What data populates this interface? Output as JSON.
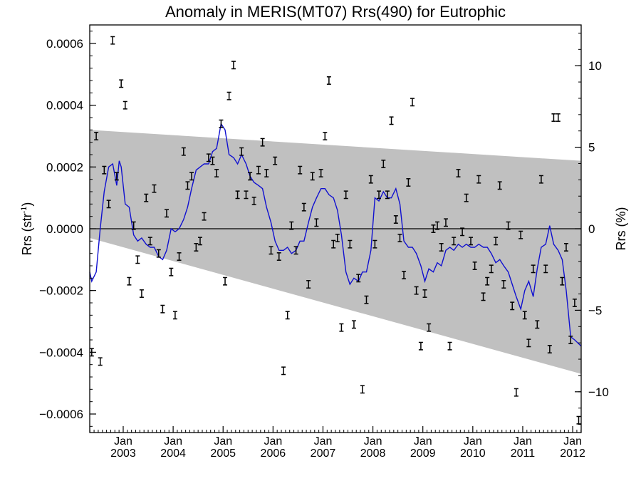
{
  "chart_data": {
    "type": "line",
    "title": "Anomaly in MERIS(MT07) Rrs(490) for Eutrophic",
    "ylabel_left_main": "Rrs (str",
    "ylabel_left_sup": "-1",
    "ylabel_left_end": ")",
    "ylabel_right": "Rrs (%)",
    "xlabel": "",
    "xlim": [
      2002.33,
      2012.17
    ],
    "ylim_left": [
      -0.00066,
      0.00066
    ],
    "ylim_right": [
      -12.5,
      12.5
    ],
    "grid": false,
    "left_ticks": [
      {
        "value": 0.0006,
        "label": "0.0006"
      },
      {
        "value": 0.0004,
        "label": "0.0004"
      },
      {
        "value": 0.0002,
        "label": "0.0002"
      },
      {
        "value": 0.0,
        "label": "0.0000"
      },
      {
        "value": -0.0002,
        "label": "−0.0002"
      },
      {
        "value": -0.0004,
        "label": "−0.0004"
      },
      {
        "value": -0.0006,
        "label": "−0.0006"
      }
    ],
    "right_ticks": [
      {
        "value": 10,
        "label": "10"
      },
      {
        "value": 5,
        "label": "5"
      },
      {
        "value": 0,
        "label": "0"
      },
      {
        "value": -5,
        "label": "−5"
      },
      {
        "value": -10,
        "label": "−10"
      }
    ],
    "x_ticks": [
      {
        "value": 2003.0,
        "label": "Jan",
        "year": "2003"
      },
      {
        "value": 2004.0,
        "label": "Jan",
        "year": "2004"
      },
      {
        "value": 2005.0,
        "label": "Jan",
        "year": "2005"
      },
      {
        "value": 2006.0,
        "label": "Jan",
        "year": "2006"
      },
      {
        "value": 2007.0,
        "label": "Jan",
        "year": "2007"
      },
      {
        "value": 2008.0,
        "label": "Jan",
        "year": "2008"
      },
      {
        "value": 2009.0,
        "label": "Jan",
        "year": "2009"
      },
      {
        "value": 2010.0,
        "label": "Jan",
        "year": "2010"
      },
      {
        "value": 2011.0,
        "label": "Jan",
        "year": "2011"
      },
      {
        "value": 2012.0,
        "label": "Jan",
        "year": "2012"
      }
    ],
    "band": {
      "color": "#c0c0c0",
      "upper": [
        [
          2002.33,
          0.00032
        ],
        [
          2012.17,
          0.00022
        ]
      ],
      "lower": [
        [
          2002.33,
          -3e-05
        ],
        [
          2012.17,
          -0.00047
        ]
      ]
    },
    "zero_line": 0.0,
    "series": [
      {
        "style": "errorbar",
        "color": "#000000",
        "errorbar_halfwidth": 1.2e-05,
        "points": [
          [
            2002.37,
            -0.0004
          ],
          [
            2002.46,
            0.0003
          ],
          [
            2002.54,
            -0.00043
          ],
          [
            2002.62,
            0.00019
          ],
          [
            2002.71,
            8e-05
          ],
          [
            2002.79,
            0.00061
          ],
          [
            2002.87,
            0.00017
          ],
          [
            2002.96,
            0.00047
          ],
          [
            2003.04,
            0.0004
          ],
          [
            2003.12,
            -0.00017
          ],
          [
            2003.21,
            1e-05
          ],
          [
            2003.29,
            -0.0001
          ],
          [
            2003.37,
            -0.00021
          ],
          [
            2003.46,
            0.0001
          ],
          [
            2003.54,
            -4e-05
          ],
          [
            2003.62,
            0.00013
          ],
          [
            2003.71,
            -8e-05
          ],
          [
            2003.79,
            -0.00026
          ],
          [
            2003.87,
            5e-05
          ],
          [
            2003.96,
            -0.00014
          ],
          [
            2004.04,
            -0.00028
          ],
          [
            2004.12,
            -9e-05
          ],
          [
            2004.21,
            0.00025
          ],
          [
            2004.29,
            0.00014
          ],
          [
            2004.37,
            0.00017
          ],
          [
            2004.46,
            -6e-05
          ],
          [
            2004.54,
            -4e-05
          ],
          [
            2004.62,
            4e-05
          ],
          [
            2004.71,
            0.00023
          ],
          [
            2004.79,
            0.00022
          ],
          [
            2004.87,
            0.00018
          ],
          [
            2004.96,
            0.00034
          ],
          [
            2005.04,
            -0.00017
          ],
          [
            2005.12,
            0.00043
          ],
          [
            2005.21,
            0.00053
          ],
          [
            2005.29,
            0.00011
          ],
          [
            2005.37,
            0.00025
          ],
          [
            2005.46,
            0.00011
          ],
          [
            2005.54,
            0.00017
          ],
          [
            2005.62,
            9e-05
          ],
          [
            2005.71,
            0.00019
          ],
          [
            2005.79,
            0.00028
          ],
          [
            2005.87,
            0.00018
          ],
          [
            2005.96,
            -7e-05
          ],
          [
            2006.04,
            0.00022
          ],
          [
            2006.12,
            -9e-05
          ],
          [
            2006.21,
            -0.00046
          ],
          [
            2006.29,
            -0.00028
          ],
          [
            2006.37,
            1e-05
          ],
          [
            2006.46,
            -7e-05
          ],
          [
            2006.54,
            0.00019
          ],
          [
            2006.62,
            7e-05
          ],
          [
            2006.71,
            -0.00018
          ],
          [
            2006.79,
            0.00017
          ],
          [
            2006.87,
            2e-05
          ],
          [
            2006.96,
            0.00018
          ],
          [
            2007.04,
            0.0003
          ],
          [
            2007.12,
            0.00048
          ],
          [
            2007.21,
            -5e-05
          ],
          [
            2007.29,
            -3e-05
          ],
          [
            2007.37,
            -0.00032
          ],
          [
            2007.46,
            0.00011
          ],
          [
            2007.54,
            -5e-05
          ],
          [
            2007.62,
            -0.00031
          ],
          [
            2007.71,
            -0.00016
          ],
          [
            2007.79,
            -0.00052
          ],
          [
            2007.87,
            -0.00023
          ],
          [
            2007.96,
            0.00016
          ],
          [
            2008.04,
            -5e-05
          ],
          [
            2008.12,
            0.00011
          ],
          [
            2008.21,
            0.00021
          ],
          [
            2008.29,
            0.00011
          ],
          [
            2008.37,
            0.00035
          ],
          [
            2008.46,
            3e-05
          ],
          [
            2008.54,
            -3e-05
          ],
          [
            2008.62,
            -0.00015
          ],
          [
            2008.71,
            0.00015
          ],
          [
            2008.79,
            0.00041
          ],
          [
            2008.87,
            -0.0002
          ],
          [
            2008.96,
            -0.00038
          ],
          [
            2009.04,
            -0.00021
          ],
          [
            2009.12,
            -0.00032
          ],
          [
            2009.21,
            0.0
          ],
          [
            2009.29,
            1e-05
          ],
          [
            2009.37,
            -6e-05
          ],
          [
            2009.46,
            2e-05
          ],
          [
            2009.54,
            -0.00038
          ],
          [
            2009.62,
            -4e-05
          ],
          [
            2009.71,
            0.00018
          ],
          [
            2009.79,
            -1e-05
          ],
          [
            2009.87,
            0.0001
          ],
          [
            2009.96,
            -4e-05
          ],
          [
            2010.04,
            -0.00012
          ],
          [
            2010.12,
            0.00016
          ],
          [
            2010.21,
            -0.00022
          ],
          [
            2010.29,
            -0.00017
          ],
          [
            2010.37,
            -0.00013
          ],
          [
            2010.46,
            -4e-05
          ],
          [
            2010.54,
            0.00014
          ],
          [
            2010.62,
            -0.00018
          ],
          [
            2010.71,
            1e-05
          ],
          [
            2010.79,
            -0.00025
          ],
          [
            2010.87,
            -0.00053
          ],
          [
            2010.96,
            -2e-05
          ],
          [
            2011.04,
            -0.00028
          ],
          [
            2011.12,
            -0.00037
          ],
          [
            2011.21,
            -0.00013
          ],
          [
            2011.29,
            -0.00031
          ],
          [
            2011.37,
            0.00016
          ],
          [
            2011.46,
            -0.00013
          ],
          [
            2011.54,
            -0.00039
          ],
          [
            2011.62,
            0.00036
          ],
          [
            2011.71,
            0.00036
          ],
          [
            2011.79,
            -0.00017
          ],
          [
            2011.87,
            -6e-05
          ],
          [
            2011.96,
            -0.00036
          ],
          [
            2012.04,
            -0.00024
          ],
          [
            2012.12,
            -0.00062
          ]
        ]
      },
      {
        "style": "line",
        "color": "#1010d0",
        "points": [
          [
            2002.33,
            -0.00014
          ],
          [
            2002.37,
            -0.00017
          ],
          [
            2002.46,
            -0.00014
          ],
          [
            2002.54,
            0.0
          ],
          [
            2002.62,
            0.00012
          ],
          [
            2002.71,
            0.0002
          ],
          [
            2002.79,
            0.00021
          ],
          [
            2002.87,
            0.00014
          ],
          [
            2002.92,
            0.00022
          ],
          [
            2002.96,
            0.0002
          ],
          [
            2003.04,
            8e-05
          ],
          [
            2003.12,
            7e-05
          ],
          [
            2003.21,
            -2e-05
          ],
          [
            2003.29,
            -4e-05
          ],
          [
            2003.37,
            -3e-05
          ],
          [
            2003.46,
            -5e-05
          ],
          [
            2003.54,
            -6e-05
          ],
          [
            2003.62,
            -6e-05
          ],
          [
            2003.71,
            -9e-05
          ],
          [
            2003.79,
            -0.0001
          ],
          [
            2003.87,
            -7e-05
          ],
          [
            2003.96,
            0.0
          ],
          [
            2004.04,
            -1e-05
          ],
          [
            2004.12,
            0.0
          ],
          [
            2004.21,
            3e-05
          ],
          [
            2004.29,
            7e-05
          ],
          [
            2004.37,
            0.00013
          ],
          [
            2004.46,
            0.00019
          ],
          [
            2004.54,
            0.0002
          ],
          [
            2004.62,
            0.00021
          ],
          [
            2004.71,
            0.00021
          ],
          [
            2004.79,
            0.00025
          ],
          [
            2004.87,
            0.00026
          ],
          [
            2004.96,
            0.00034
          ],
          [
            2005.04,
            0.00032
          ],
          [
            2005.12,
            0.00024
          ],
          [
            2005.21,
            0.00023
          ],
          [
            2005.29,
            0.00021
          ],
          [
            2005.37,
            0.00024
          ],
          [
            2005.46,
            0.00021
          ],
          [
            2005.54,
            0.00017
          ],
          [
            2005.62,
            0.00015
          ],
          [
            2005.71,
            0.00014
          ],
          [
            2005.79,
            0.00013
          ],
          [
            2005.87,
            7e-05
          ],
          [
            2005.96,
            2e-05
          ],
          [
            2006.04,
            -4e-05
          ],
          [
            2006.12,
            -7e-05
          ],
          [
            2006.21,
            -7e-05
          ],
          [
            2006.29,
            -6e-05
          ],
          [
            2006.37,
            -8e-05
          ],
          [
            2006.46,
            -7e-05
          ],
          [
            2006.54,
            -4e-05
          ],
          [
            2006.62,
            -4e-05
          ],
          [
            2006.71,
            2e-05
          ],
          [
            2006.79,
            7e-05
          ],
          [
            2006.87,
            0.0001
          ],
          [
            2006.96,
            0.00013
          ],
          [
            2007.04,
            0.00013
          ],
          [
            2007.12,
            0.00011
          ],
          [
            2007.21,
            0.0001
          ],
          [
            2007.29,
            6e-05
          ],
          [
            2007.37,
            -2e-05
          ],
          [
            2007.46,
            -0.00014
          ],
          [
            2007.54,
            -0.00018
          ],
          [
            2007.62,
            -0.00016
          ],
          [
            2007.71,
            -0.00017
          ],
          [
            2007.79,
            -0.00014
          ],
          [
            2007.87,
            -0.00014
          ],
          [
            2007.96,
            -7e-05
          ],
          [
            2008.04,
            0.0001
          ],
          [
            2008.12,
            9e-05
          ],
          [
            2008.21,
            0.00012
          ],
          [
            2008.29,
            0.0001
          ],
          [
            2008.37,
            0.0001
          ],
          [
            2008.46,
            0.00013
          ],
          [
            2008.54,
            8e-05
          ],
          [
            2008.62,
            -4e-05
          ],
          [
            2008.71,
            -6e-05
          ],
          [
            2008.79,
            -6e-05
          ],
          [
            2008.87,
            -8e-05
          ],
          [
            2008.96,
            -0.00012
          ],
          [
            2009.04,
            -0.00017
          ],
          [
            2009.12,
            -0.00013
          ],
          [
            2009.21,
            -0.00014
          ],
          [
            2009.29,
            -0.00011
          ],
          [
            2009.37,
            -0.00012
          ],
          [
            2009.46,
            -7e-05
          ],
          [
            2009.54,
            -6e-05
          ],
          [
            2009.62,
            -7e-05
          ],
          [
            2009.71,
            -5e-05
          ],
          [
            2009.79,
            -6e-05
          ],
          [
            2009.87,
            -5e-05
          ],
          [
            2009.96,
            -6e-05
          ],
          [
            2010.04,
            -6e-05
          ],
          [
            2010.12,
            -5e-05
          ],
          [
            2010.21,
            -6e-05
          ],
          [
            2010.29,
            -6e-05
          ],
          [
            2010.37,
            -8e-05
          ],
          [
            2010.46,
            -0.00011
          ],
          [
            2010.54,
            -0.0001
          ],
          [
            2010.62,
            -0.00012
          ],
          [
            2010.71,
            -0.00014
          ],
          [
            2010.79,
            -0.00018
          ],
          [
            2010.87,
            -0.00022
          ],
          [
            2010.96,
            -0.00026
          ],
          [
            2011.04,
            -0.0002
          ],
          [
            2011.12,
            -0.00017
          ],
          [
            2011.21,
            -0.00022
          ],
          [
            2011.29,
            -0.00013
          ],
          [
            2011.37,
            -6e-05
          ],
          [
            2011.46,
            -5e-05
          ],
          [
            2011.54,
            1e-05
          ],
          [
            2011.62,
            -5e-05
          ],
          [
            2011.71,
            -7e-05
          ],
          [
            2011.79,
            -0.0001
          ],
          [
            2011.87,
            -0.0002
          ],
          [
            2011.96,
            -0.00035
          ],
          [
            2012.04,
            -0.00036
          ],
          [
            2012.17,
            -0.00038
          ]
        ]
      }
    ]
  }
}
